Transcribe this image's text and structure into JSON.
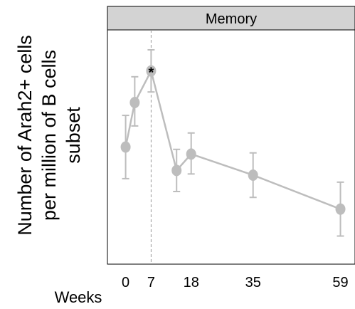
{
  "chart_data": {
    "type": "line",
    "facet_title": "Memory",
    "ylabel": [
      "Number of Arah2+ cells",
      "per million of B cells",
      "subset"
    ],
    "xlabel": "Weeks",
    "x_tick_labels": [
      "0",
      "7",
      "18",
      "35",
      "59"
    ],
    "x_ticks": [
      0,
      7,
      18,
      35,
      59
    ],
    "xlim": [
      -5,
      63
    ],
    "ylim": [
      0,
      10
    ],
    "series": [
      {
        "color": "#bdbdbd",
        "points": [
          {
            "x": 0,
            "y": 5.0,
            "lo": 3.65,
            "hi": 6.35
          },
          {
            "x": 2.5,
            "y": 6.9,
            "lo": 5.9,
            "hi": 8.0
          },
          {
            "x": 7,
            "y": 8.25,
            "lo": 7.35,
            "hi": 9.15
          },
          {
            "x": 14,
            "y": 4.0,
            "lo": 3.1,
            "hi": 4.9
          },
          {
            "x": 18,
            "y": 4.7,
            "lo": 3.85,
            "hi": 5.6
          },
          {
            "x": 35,
            "y": 3.8,
            "lo": 2.85,
            "hi": 4.75
          },
          {
            "x": 59,
            "y": 2.35,
            "lo": 1.2,
            "hi": 3.5
          }
        ]
      }
    ],
    "reference_line_x": 7,
    "annotation": {
      "text": "*",
      "x": 7
    }
  }
}
